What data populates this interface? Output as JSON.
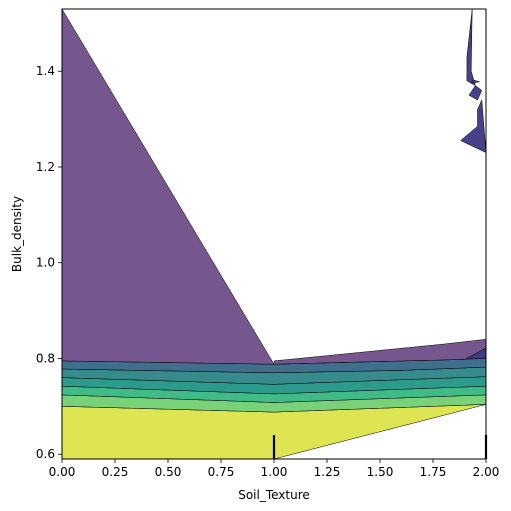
{
  "chart_data": {
    "type": "contour",
    "title": "",
    "xlabel": "Soil_Texture",
    "ylabel": "Bulk_density",
    "xlim": [
      0.0,
      2.0
    ],
    "ylim": [
      0.59,
      1.53
    ],
    "x_ticks": [
      0.0,
      0.25,
      0.5,
      0.75,
      1.0,
      1.25,
      1.5,
      1.75,
      2.0
    ],
    "x_tick_labels": [
      "0.00",
      "0.25",
      "0.50",
      "0.75",
      "1.00",
      "1.25",
      "1.50",
      "1.75",
      "2.00"
    ],
    "y_ticks": [
      0.6,
      0.8,
      1.0,
      1.2,
      1.4
    ],
    "y_tick_labels": [
      "0.6",
      "0.8",
      "1.0",
      "1.2",
      "1.4"
    ],
    "grid": false,
    "legend": "none",
    "colormap": "viridis",
    "levels": [
      {
        "name": "level-1",
        "color": "#dde552",
        "polygon": [
          [
            0,
            0.59
          ],
          [
            0,
            0.7
          ],
          [
            1.0,
            0.688
          ],
          [
            2.0,
            0.704
          ],
          [
            1.0,
            0.59
          ]
        ]
      },
      {
        "name": "level-2",
        "color": "#79d17a",
        "polygon": [
          [
            0,
            0.7
          ],
          [
            0,
            0.724
          ],
          [
            1.0,
            0.708
          ],
          [
            2.0,
            0.724
          ],
          [
            2.0,
            0.704
          ],
          [
            1.0,
            0.688
          ]
        ]
      },
      {
        "name": "level-3",
        "color": "#40ba86",
        "polygon": [
          [
            0,
            0.724
          ],
          [
            0,
            0.742
          ],
          [
            1.0,
            0.726
          ],
          [
            2.0,
            0.742
          ],
          [
            2.0,
            0.724
          ],
          [
            1.0,
            0.708
          ]
        ]
      },
      {
        "name": "level-4",
        "color": "#2d9b8c",
        "polygon": [
          [
            0,
            0.742
          ],
          [
            0,
            0.76
          ],
          [
            1.0,
            0.746
          ],
          [
            2.0,
            0.762
          ],
          [
            2.0,
            0.742
          ],
          [
            1.0,
            0.726
          ]
        ]
      },
      {
        "name": "level-5",
        "color": "#378b8c",
        "polygon": [
          [
            0,
            0.76
          ],
          [
            0,
            0.778
          ],
          [
            1.0,
            0.77
          ],
          [
            1.6,
            0.775
          ],
          [
            2.0,
            0.782
          ],
          [
            2.0,
            0.762
          ],
          [
            1.0,
            0.746
          ]
        ]
      },
      {
        "name": "level-6",
        "color": "#3f6f8d",
        "polygon": [
          [
            0,
            0.778
          ],
          [
            0,
            0.795
          ],
          [
            1.0,
            0.788
          ],
          [
            2.0,
            0.8
          ],
          [
            2.0,
            0.782
          ],
          [
            1.6,
            0.775
          ],
          [
            1.0,
            0.77
          ]
        ]
      },
      {
        "name": "level-7",
        "color": "#3e3a83",
        "polygon": [
          [
            1.0,
            0.788
          ],
          [
            1.9,
            0.798
          ],
          [
            2.0,
            0.822
          ],
          [
            2.0,
            0.8
          ]
        ]
      },
      {
        "name": "level-8",
        "color": "#76568f",
        "polygon": [
          [
            0,
            0.795
          ],
          [
            0,
            1.53
          ],
          [
            1.0,
            0.788
          ]
        ]
      },
      {
        "name": "level-9",
        "color": "#76568f",
        "polygon": [
          [
            1.0,
            0.788
          ],
          [
            1.9,
            0.798
          ],
          [
            2.0,
            0.822
          ],
          [
            2.0,
            0.84
          ],
          [
            1.8,
            0.83
          ],
          [
            1.0,
            0.795
          ]
        ]
      },
      {
        "name": "level-10",
        "color": "#47418a",
        "polygon": [
          [
            1.935,
            1.53
          ],
          [
            1.91,
            1.43
          ],
          [
            1.91,
            1.38
          ],
          [
            1.95,
            1.37
          ],
          [
            1.93,
            1.4
          ]
        ]
      },
      {
        "name": "level-11",
        "color": "#47418a",
        "polygon": [
          [
            1.94,
            1.382
          ],
          [
            1.97,
            1.378
          ],
          [
            1.93,
            1.375
          ]
        ]
      },
      {
        "name": "level-12",
        "color": "#47418a",
        "polygon": [
          [
            1.95,
            1.37
          ],
          [
            1.98,
            1.36
          ],
          [
            1.96,
            1.34
          ],
          [
            1.92,
            1.35
          ]
        ]
      },
      {
        "name": "level-13",
        "color": "#47418a",
        "polygon": [
          [
            1.96,
            1.32
          ],
          [
            1.96,
            1.285
          ],
          [
            1.88,
            1.255
          ],
          [
            2.0,
            1.23
          ],
          [
            1.98,
            1.34
          ]
        ]
      }
    ],
    "rug_marks": [
      1.0,
      2.0
    ]
  }
}
